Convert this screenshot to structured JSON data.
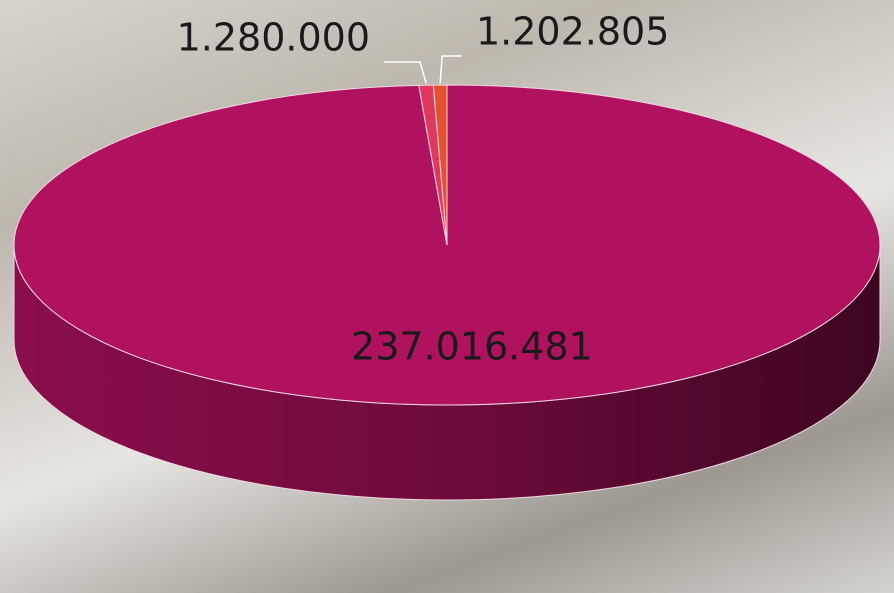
{
  "chart_data": {
    "type": "pie",
    "values": [
      237016481,
      1280000,
      1202805
    ],
    "value_labels": [
      "237.016.481",
      "1.280.000",
      "1.202.805"
    ],
    "colors": [
      "#b0125f",
      "#e0395f",
      "#e4512e"
    ]
  }
}
